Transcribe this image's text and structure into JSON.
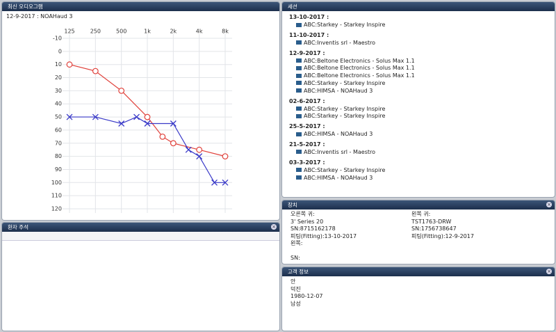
{
  "audiogram_panel": {
    "title": "최신 오디오그램",
    "date_label": "12-9-2017 : NOAHaud 3"
  },
  "chart_data": {
    "type": "line",
    "xscale": "log",
    "grid": true,
    "xlim": [
      125,
      8000
    ],
    "ylim": [
      -10,
      120
    ],
    "y_inverted": true,
    "xticks": [
      125,
      250,
      500,
      {
        "value": 1000,
        "label": "1k"
      },
      {
        "value": 2000,
        "label": "2k"
      },
      {
        "value": 4000,
        "label": "4k"
      },
      {
        "value": 8000,
        "label": "8k"
      }
    ],
    "yticks": [
      -10,
      0,
      10,
      20,
      30,
      40,
      50,
      60,
      70,
      80,
      90,
      100,
      110,
      120
    ],
    "series": [
      {
        "color": "#e0403a",
        "marker": "circle",
        "x": [
          125,
          250,
          500,
          1000,
          1500,
          2000,
          4000,
          8000
        ],
        "values": [
          10,
          15,
          30,
          50,
          65,
          70,
          75,
          80
        ]
      },
      {
        "color": "#3a3ac8",
        "marker": "x",
        "x": [
          125,
          250,
          500,
          750,
          1000,
          2000,
          3000,
          4000,
          6000,
          8000
        ],
        "values": [
          50,
          50,
          55,
          50,
          55,
          55,
          75,
          80,
          100,
          100
        ]
      }
    ]
  },
  "notes_panel": {
    "title": "환자 주석"
  },
  "sessions": {
    "title": "세션",
    "groups": [
      {
        "date": "13-10-2017 :",
        "items": [
          "ABC:Starkey  - Starkey Inspire"
        ]
      },
      {
        "date": "11-10-2017 :",
        "items": [
          "ABC:Inventis srl - Maestro"
        ]
      },
      {
        "date": "12-9-2017 :",
        "items": [
          "ABC:Beltone Electronics - Solus Max 1.1",
          "ABC:Beltone Electronics - Solus Max 1.1",
          "ABC:Beltone Electronics - Solus Max 1.1",
          "ABC:Starkey  - Starkey Inspire",
          "ABC:HIMSA  - NOAHaud 3"
        ]
      },
      {
        "date": "02-6-2017 :",
        "items": [
          "ABC:Starkey  - Starkey Inspire",
          "ABC:Starkey  - Starkey Inspire"
        ]
      },
      {
        "date": "25-5-2017 :",
        "items": [
          "ABC:HIMSA  - NOAHaud 3"
        ]
      },
      {
        "date": "21-5-2017 :",
        "items": [
          "ABC:Inventis srl - Maestro"
        ]
      },
      {
        "date": "03-3-2017 :",
        "items": [
          "ABC:Starkey  - Starkey Inspire",
          "ABC:HIMSA  - NOAHaud 3"
        ]
      }
    ]
  },
  "devices": {
    "title": "장치",
    "left": [
      "오른쪽 귀:",
      "3' Series 20",
      "SN:8715162178",
      "피팅(Fitting):13-10-2017",
      "왼쪽:",
      "",
      "SN:"
    ],
    "right": [
      "왼쪽 귀:",
      "TST1763-DRW",
      "SN:1756738647",
      "피팅(Fitting):12-9-2017"
    ]
  },
  "customer": {
    "title": "고객 정보",
    "lines": [
      "안",
      "덕진",
      "1980-12-07",
      "남성"
    ]
  }
}
